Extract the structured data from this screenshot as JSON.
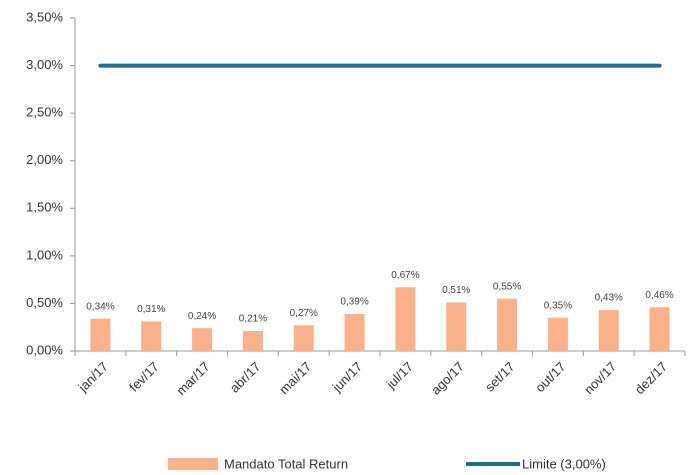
{
  "chart_data": {
    "type": "bar",
    "categories": [
      "jan/17",
      "fev/17",
      "mar/17",
      "abr/17",
      "mai/17",
      "jun/17",
      "jul/17",
      "ago/17",
      "set/17",
      "out/17",
      "nov/17",
      "dez/17"
    ],
    "series": [
      {
        "name": "Mandato Total Return",
        "type": "bar",
        "color": "#fbb28a",
        "values": [
          0.34,
          0.31,
          0.24,
          0.21,
          0.27,
          0.39,
          0.67,
          0.51,
          0.55,
          0.35,
          0.43,
          0.46
        ],
        "value_labels": [
          "0,34%",
          "0,31%",
          "0,24%",
          "0,21%",
          "0,27%",
          "0,39%",
          "0,67%",
          "0,51%",
          "0,55%",
          "0,35%",
          "0,43%",
          "0,46%"
        ]
      },
      {
        "name": "Limite (3,00%)",
        "type": "line",
        "color": "#1f6e8c",
        "values": [
          3,
          3,
          3,
          3,
          3,
          3,
          3,
          3,
          3,
          3,
          3,
          3
        ]
      }
    ],
    "ylim": [
      0,
      3.5
    ],
    "yticks": [
      {
        "value": 0,
        "label": "0,00%"
      },
      {
        "value": 0.5,
        "label": "0,50%"
      },
      {
        "value": 1,
        "label": "1,00%"
      },
      {
        "value": 1.5,
        "label": "1,50%"
      },
      {
        "value": 2,
        "label": "2,00%"
      },
      {
        "value": 2.5,
        "label": "2,50%"
      },
      {
        "value": 3,
        "label": "3,00%"
      },
      {
        "value": 3.5,
        "label": "3,50%"
      }
    ],
    "legend": "bottom"
  }
}
